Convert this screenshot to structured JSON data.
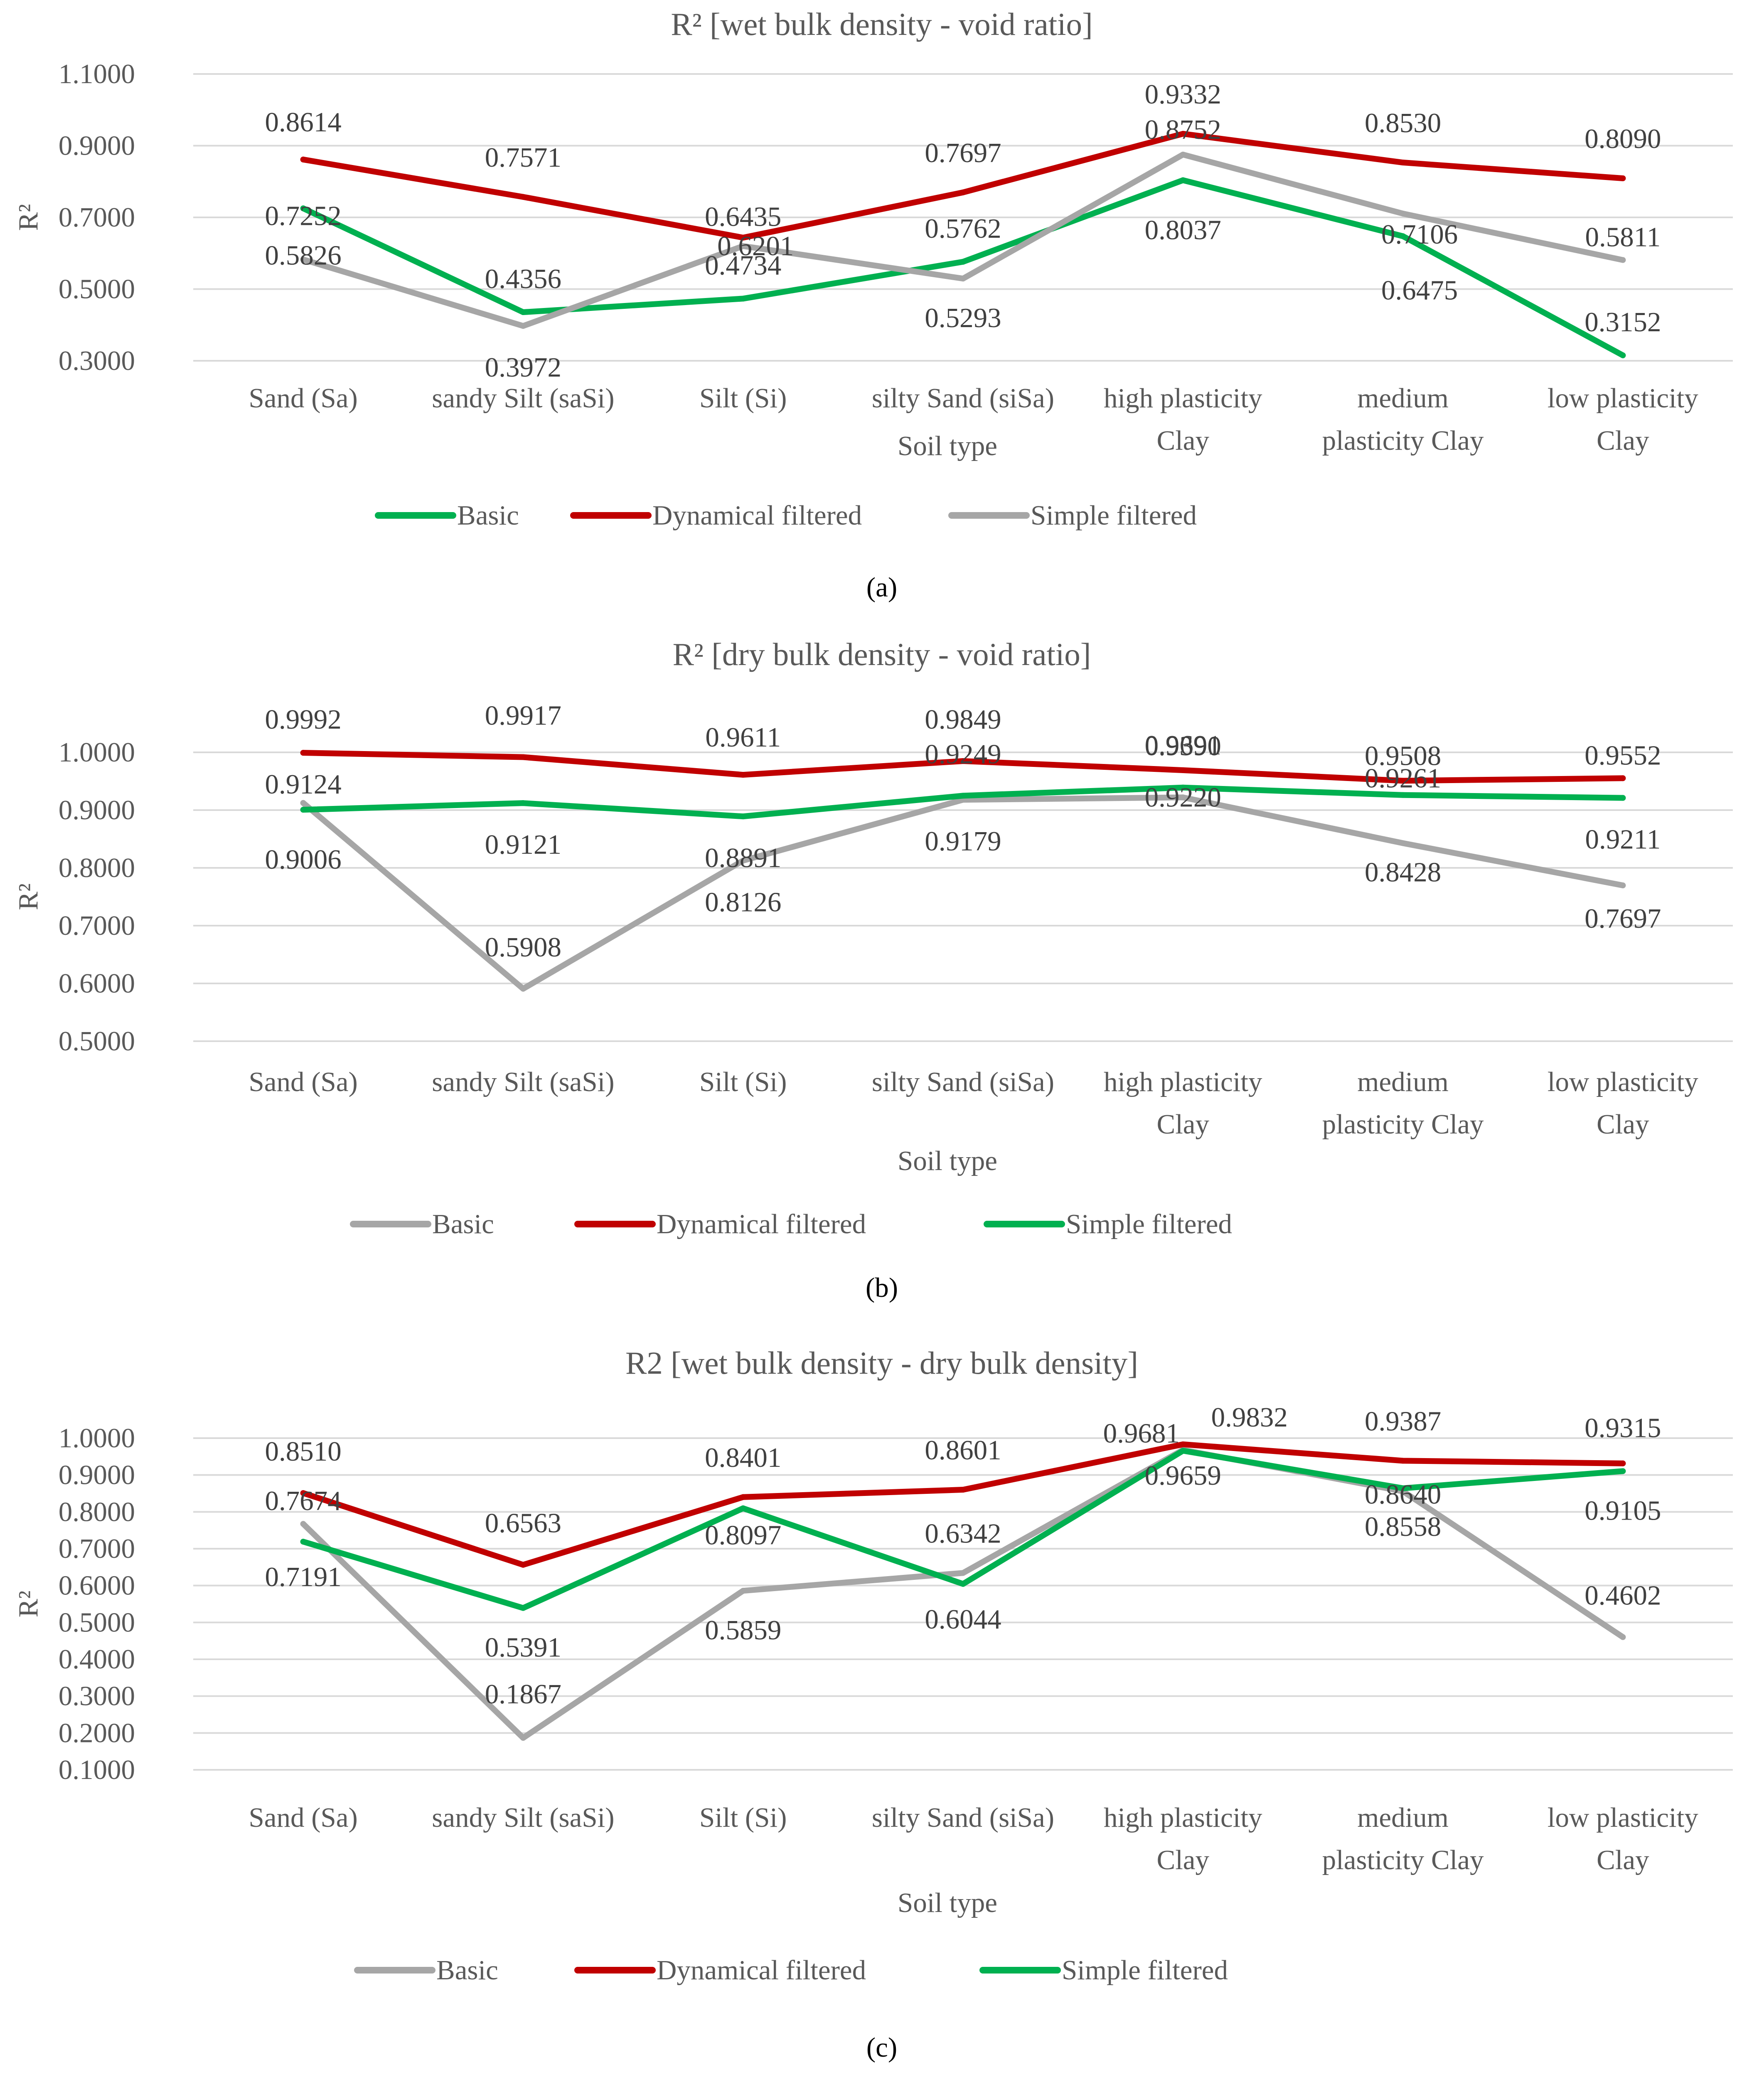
{
  "chart_data": [
    {
      "type": "line",
      "panel": "a",
      "caption": "(a)",
      "title": "R² [wet bulk density - void ratio]",
      "xlabel": "Soil type",
      "ylabel": "R²",
      "ylim": [
        0.3,
        1.1
      ],
      "yticks": [
        "0.3000",
        "0.5000",
        "0.7000",
        "0.9000",
        "1.1000"
      ],
      "categories": [
        [
          "Sand (Sa)"
        ],
        [
          "sandy Silt (saSi)"
        ],
        [
          "Silt (Si)"
        ],
        [
          "silty Sand (siSa)"
        ],
        [
          "high plasticity",
          "Clay"
        ],
        [
          "medium",
          "plasticity Clay"
        ],
        [
          "low plasticity",
          "Clay"
        ]
      ],
      "series": [
        {
          "name": "Basic",
          "color": "#00b050",
          "values": [
            0.7252,
            0.4356,
            0.4734,
            0.5762,
            0.8037,
            0.6475,
            0.3152
          ],
          "labels": [
            "0.7252",
            "0.4356",
            "0.4734",
            "0.5762",
            "0.8037",
            "0.6475",
            "0.3152"
          ]
        },
        {
          "name": "Dynamical filtered",
          "color": "#c00000",
          "values": [
            0.8614,
            0.7571,
            0.6435,
            0.7697,
            0.9332,
            0.853,
            0.809
          ],
          "labels": [
            "0.8614",
            "0.7571",
            "0.6435",
            "0.7697",
            "0.9332",
            "0.8530",
            "0.8090"
          ]
        },
        {
          "name": "Simple filtered",
          "color": "#a6a6a6",
          "values": [
            0.5826,
            0.3972,
            0.6201,
            0.5293,
            0.8752,
            0.7106,
            0.5811
          ],
          "labels": [
            "0.5826",
            "0.3972",
            "0.6201",
            "0.5293",
            "0.8752",
            "0.7106",
            "0.5811"
          ]
        }
      ],
      "legend": "bottom",
      "grid": true
    },
    {
      "type": "line",
      "panel": "b",
      "caption": "(b)",
      "title": "R² [dry bulk density - void ratio]",
      "xlabel": "Soil type",
      "ylabel": "R²",
      "ylim": [
        0.5,
        1.0
      ],
      "yticks": [
        "0.5000",
        "0.6000",
        "0.7000",
        "0.8000",
        "0.9000",
        "1.0000"
      ],
      "categories": [
        [
          "Sand (Sa)"
        ],
        [
          "sandy Silt (saSi)"
        ],
        [
          "Silt (Si)"
        ],
        [
          "silty Sand (siSa)"
        ],
        [
          "high plasticity",
          "Clay"
        ],
        [
          "medium",
          "plasticity Clay"
        ],
        [
          "low plasticity",
          "Clay"
        ]
      ],
      "series": [
        {
          "name": "Basic",
          "color": "#a6a6a6",
          "values": [
            0.9124,
            0.5908,
            0.8126,
            0.9179,
            0.922,
            0.8428,
            0.7697
          ],
          "labels": [
            "0.9124",
            "0.5908",
            "0.8126",
            "0.9179",
            "0.9220",
            "0.8428",
            "0.7697"
          ]
        },
        {
          "name": "Dynamical filtered",
          "color": "#c00000",
          "values": [
            0.9992,
            0.9917,
            0.9611,
            0.9849,
            0.9691,
            0.9508,
            0.9552
          ],
          "labels": [
            "0.9992",
            "0.9917",
            "0.9611",
            "0.9849",
            "0.9691",
            "0.9508",
            "0.9552"
          ]
        },
        {
          "name": "Simple filtered",
          "color": "#00b050",
          "values": [
            0.9006,
            0.9121,
            0.8891,
            0.9249,
            0.939,
            0.9261,
            0.9211
          ],
          "labels": [
            "0.9006",
            "0.9121",
            "0.8891",
            "0.9249",
            "0.9390",
            "0.9261",
            "0.9211"
          ]
        }
      ],
      "legend": "bottom",
      "grid": true
    },
    {
      "type": "line",
      "panel": "c",
      "caption": "(c)",
      "title": "R2 [wet bulk density - dry bulk density]",
      "xlabel": "Soil type",
      "ylabel": "R²",
      "ylim": [
        0.1,
        1.0
      ],
      "yticks": [
        "0.1000",
        "0.2000",
        "0.3000",
        "0.4000",
        "0.5000",
        "0.6000",
        "0.7000",
        "0.8000",
        "0.9000",
        "1.0000"
      ],
      "categories": [
        [
          "Sand (Sa)"
        ],
        [
          "sandy Silt (saSi)"
        ],
        [
          "Silt (Si)"
        ],
        [
          "silty Sand (siSa)"
        ],
        [
          "high plasticity",
          "Clay"
        ],
        [
          "medium",
          "plasticity Clay"
        ],
        [
          "low plasticity",
          "Clay"
        ]
      ],
      "series": [
        {
          "name": "Basic",
          "color": "#a6a6a6",
          "values": [
            0.7674,
            0.1867,
            0.5859,
            0.6342,
            0.9681,
            0.8558,
            0.4602
          ],
          "labels": [
            "0.7674",
            "0.1867",
            "0.5859",
            "0.6342",
            "0.9681",
            "0.8558",
            "0.4602"
          ]
        },
        {
          "name": "Dynamical filtered",
          "color": "#c00000",
          "values": [
            0.851,
            0.6563,
            0.8401,
            0.8601,
            0.9832,
            0.9387,
            0.9315
          ],
          "labels": [
            "0.8510",
            "0.6563",
            "0.8401",
            "0.8601",
            "0.9832",
            "0.9387",
            "0.9315"
          ]
        },
        {
          "name": "Simple filtered",
          "color": "#00b050",
          "values": [
            0.7191,
            0.5391,
            0.8097,
            0.6044,
            0.9659,
            0.864,
            0.9105
          ],
          "labels": [
            "0.7191",
            "0.5391",
            "0.8097",
            "0.6044",
            "0.9659",
            "0.8640",
            "0.9105"
          ]
        }
      ],
      "legend": "bottom",
      "grid": true
    }
  ]
}
